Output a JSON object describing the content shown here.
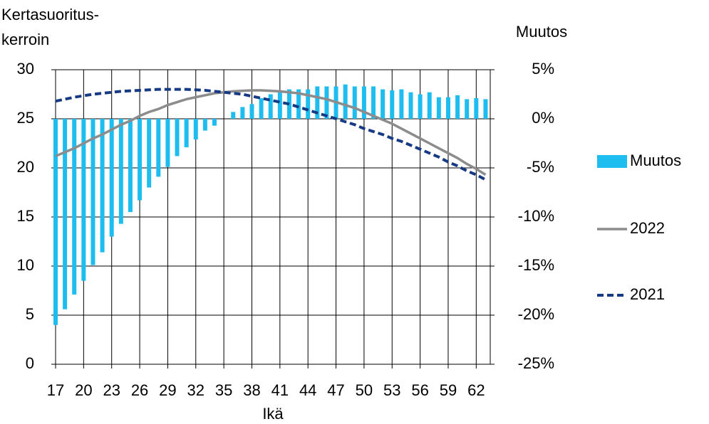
{
  "chart_data": {
    "type": "bar-line",
    "ylabel": [
      "Kertasuoritus-",
      "kerroin"
    ],
    "y2label": "Muutos",
    "xlabel": "Ikä",
    "x": [
      17,
      18,
      19,
      20,
      21,
      22,
      23,
      24,
      25,
      26,
      27,
      28,
      29,
      30,
      31,
      32,
      33,
      34,
      35,
      36,
      37,
      38,
      39,
      40,
      41,
      42,
      43,
      44,
      45,
      46,
      47,
      48,
      49,
      50,
      51,
      52,
      53,
      54,
      55,
      56,
      57,
      58,
      59,
      60,
      61,
      62,
      63
    ],
    "xlim": [
      17,
      63.5
    ],
    "xticks": [
      17,
      20,
      23,
      26,
      29,
      32,
      35,
      38,
      41,
      44,
      47,
      50,
      53,
      56,
      59,
      62
    ],
    "ylim": [
      0,
      30
    ],
    "yticks": [
      0,
      5,
      10,
      15,
      20,
      25,
      30
    ],
    "y2lim": [
      -25,
      5
    ],
    "y2ticks": [
      {
        "value": -25,
        "label": "-25%"
      },
      {
        "value": -20,
        "label": "-20%"
      },
      {
        "value": -15,
        "label": "-15%"
      },
      {
        "value": -10,
        "label": "-10%"
      },
      {
        "value": -5,
        "label": "-5%"
      },
      {
        "value": 0,
        "label": "0%"
      },
      {
        "value": 5,
        "label": "5%"
      }
    ],
    "grid": true,
    "series": [
      {
        "name": "Muutos",
        "type": "bar",
        "axis": "y2",
        "color": "#1ebdf0",
        "values": [
          -21.0,
          -19.4,
          -17.9,
          -16.5,
          -14.9,
          -13.6,
          -12.0,
          -10.7,
          -9.5,
          -8.3,
          -7.0,
          -5.9,
          -4.9,
          -3.8,
          -2.9,
          -2.1,
          -1.2,
          -0.7,
          0,
          0.7,
          1.2,
          1.5,
          2.1,
          2.5,
          2.8,
          3.0,
          3.0,
          3.0,
          3.3,
          3.3,
          3.3,
          3.5,
          3.3,
          3.3,
          3.3,
          3.0,
          2.9,
          3.0,
          2.7,
          2.5,
          2.7,
          2.2,
          2.2,
          2.4,
          2.0,
          2.1,
          2.0
        ]
      },
      {
        "name": "2022",
        "type": "line",
        "color": "#8c8c8c",
        "dashed": false,
        "values": [
          21.2,
          21.6,
          22.0,
          22.5,
          23.0,
          23.4,
          23.9,
          24.4,
          24.8,
          25.3,
          25.7,
          26.0,
          26.4,
          26.7,
          27.0,
          27.2,
          27.4,
          27.6,
          27.7,
          27.8,
          27.85,
          27.9,
          27.9,
          27.85,
          27.8,
          27.7,
          27.6,
          27.4,
          27.2,
          27.0,
          26.7,
          26.4,
          26.1,
          25.7,
          25.3,
          24.9,
          24.5,
          24.0,
          23.5,
          23.0,
          22.5,
          22.0,
          21.5,
          21.0,
          20.4,
          19.9,
          19.3
        ]
      },
      {
        "name": "2021",
        "type": "line",
        "color": "#173a85",
        "dashed": true,
        "values": [
          26.8,
          27.0,
          27.2,
          27.35,
          27.5,
          27.6,
          27.7,
          27.8,
          27.85,
          27.9,
          27.95,
          28.0,
          28.0,
          28.0,
          28.0,
          27.95,
          27.9,
          27.8,
          27.7,
          27.6,
          27.5,
          27.3,
          27.1,
          26.9,
          26.7,
          26.5,
          26.2,
          25.9,
          25.6,
          25.3,
          25.0,
          24.7,
          24.4,
          24.0,
          23.7,
          23.4,
          23.0,
          22.7,
          22.3,
          21.9,
          21.5,
          21.1,
          20.6,
          20.2,
          19.7,
          19.3,
          18.8
        ]
      }
    ]
  }
}
